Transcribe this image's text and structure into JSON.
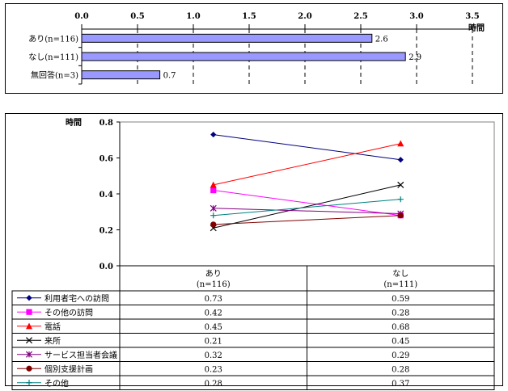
{
  "chart_data": [
    {
      "type": "bar",
      "orientation": "horizontal",
      "categories": [
        "あり(n=116)",
        "なし(n=111)",
        "無回答(n=3)"
      ],
      "values": [
        2.6,
        2.9,
        0.7
      ],
      "xlim": [
        0.0,
        3.5
      ],
      "xticks": [
        "0.0",
        "0.5",
        "1.0",
        "1.5",
        "2.0",
        "2.5",
        "3.0",
        "3.5"
      ],
      "unit_label": "時間",
      "grid": "vertical dashed",
      "bar_color": "#9999ff"
    },
    {
      "type": "line",
      "categories": [
        "あり\n(n=116)",
        "なし\n(n=111)"
      ],
      "ylabel": "時間",
      "ylim": [
        0.0,
        0.8
      ],
      "yticks": [
        "0.0",
        "0.2",
        "0.4",
        "0.6",
        "0.8"
      ],
      "legend": "data table below",
      "series": [
        {
          "name": "利用者宅への訪問",
          "values": [
            0.73,
            0.59
          ],
          "color": "#000080",
          "marker": "diamond"
        },
        {
          "name": "その他の訪問",
          "values": [
            0.42,
            0.28
          ],
          "color": "#ff00ff",
          "marker": "square"
        },
        {
          "name": "電話",
          "values": [
            0.45,
            0.68
          ],
          "color": "#ff0000",
          "marker": "triangle"
        },
        {
          "name": "来所",
          "values": [
            0.21,
            0.45
          ],
          "color": "#000000",
          "marker": "x"
        },
        {
          "name": "サービス担当者会議",
          "values": [
            0.32,
            0.29
          ],
          "color": "#800080",
          "marker": "star"
        },
        {
          "name": "個別支援計画",
          "values": [
            0.23,
            0.28
          ],
          "color": "#800000",
          "marker": "circle"
        },
        {
          "name": "その他",
          "values": [
            0.28,
            0.37
          ],
          "color": "#008080",
          "marker": "plus"
        }
      ]
    }
  ]
}
